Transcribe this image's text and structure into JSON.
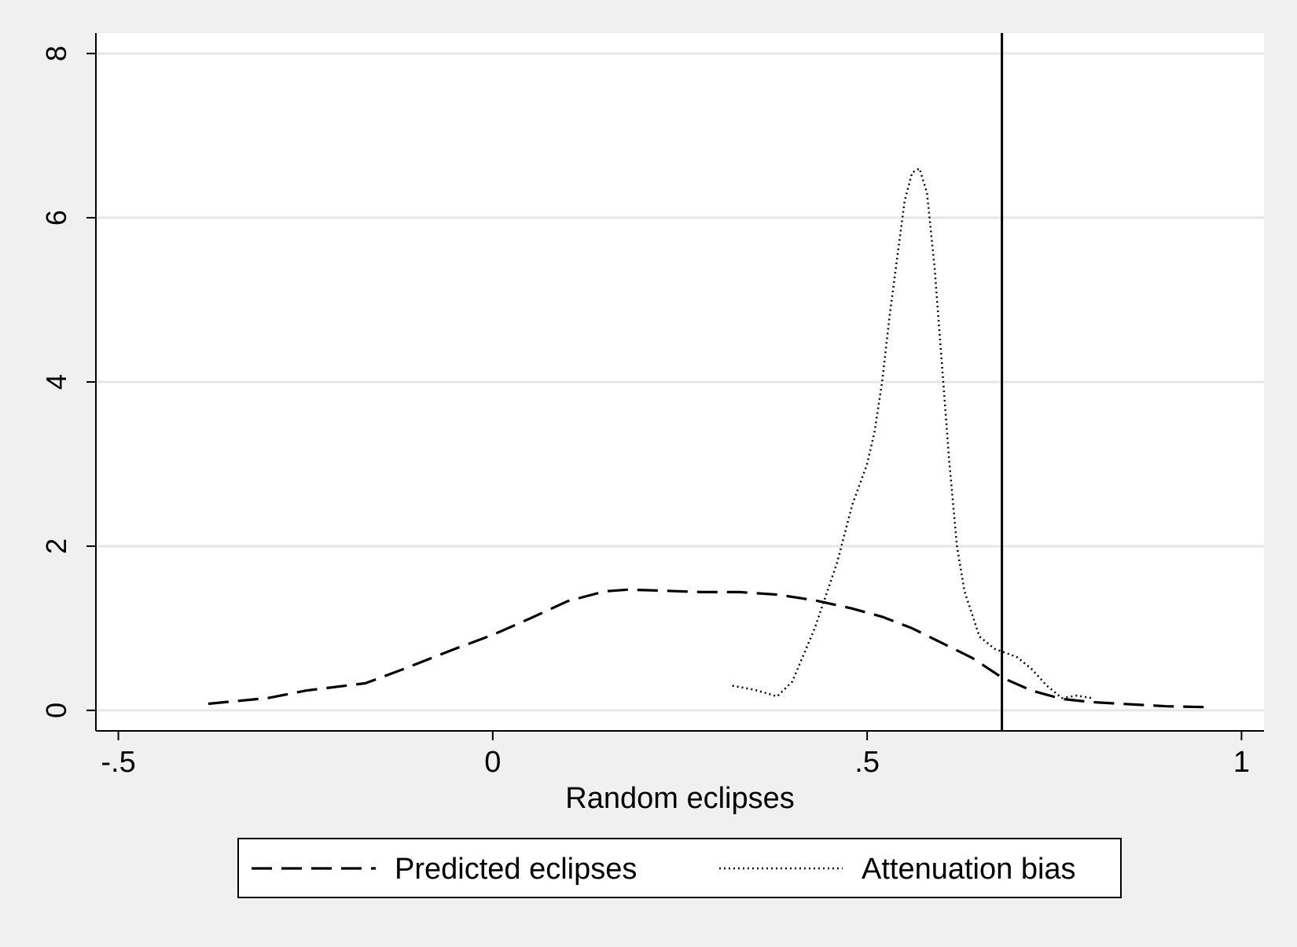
{
  "chart_data": {
    "type": "line",
    "title": "",
    "xlabel": "Random eclipses",
    "ylabel": "",
    "xlim": [
      -0.53,
      1.03
    ],
    "ylim": [
      -0.25,
      8.25
    ],
    "x_ticks": [
      -0.5,
      0,
      0.5,
      1
    ],
    "x_tick_labels": [
      "-.5",
      "0",
      ".5",
      "1"
    ],
    "y_ticks": [
      0,
      2,
      4,
      6,
      8
    ],
    "y_tick_labels": [
      "0",
      "2",
      "4",
      "6",
      "8"
    ],
    "grid": "horizontal",
    "legend_position": "bottom",
    "reference_line": {
      "x": 0.68
    },
    "series": [
      {
        "name": "Predicted eclipses",
        "style": "dashed",
        "color": "#000000",
        "points": [
          [
            -0.38,
            0.08
          ],
          [
            -0.3,
            0.15
          ],
          [
            -0.25,
            0.24
          ],
          [
            -0.17,
            0.33
          ],
          [
            -0.12,
            0.5
          ],
          [
            -0.05,
            0.75
          ],
          [
            0,
            0.92
          ],
          [
            0.05,
            1.12
          ],
          [
            0.1,
            1.33
          ],
          [
            0.15,
            1.45
          ],
          [
            0.18,
            1.47
          ],
          [
            0.22,
            1.46
          ],
          [
            0.28,
            1.44
          ],
          [
            0.33,
            1.44
          ],
          [
            0.38,
            1.41
          ],
          [
            0.43,
            1.34
          ],
          [
            0.48,
            1.24
          ],
          [
            0.52,
            1.14
          ],
          [
            0.56,
            1.0
          ],
          [
            0.6,
            0.82
          ],
          [
            0.64,
            0.64
          ],
          [
            0.68,
            0.4
          ],
          [
            0.72,
            0.24
          ],
          [
            0.76,
            0.14
          ],
          [
            0.8,
            0.1
          ],
          [
            0.86,
            0.07
          ],
          [
            0.9,
            0.05
          ],
          [
            0.95,
            0.04
          ]
        ]
      },
      {
        "name": "Attenuation bias",
        "style": "dotted",
        "color": "#000000",
        "points": [
          [
            0.32,
            0.3
          ],
          [
            0.35,
            0.25
          ],
          [
            0.38,
            0.17
          ],
          [
            0.4,
            0.35
          ],
          [
            0.43,
            1.0
          ],
          [
            0.46,
            1.8
          ],
          [
            0.48,
            2.5
          ],
          [
            0.5,
            3.0
          ],
          [
            0.51,
            3.4
          ],
          [
            0.52,
            4.0
          ],
          [
            0.53,
            4.8
          ],
          [
            0.54,
            5.5
          ],
          [
            0.55,
            6.2
          ],
          [
            0.56,
            6.55
          ],
          [
            0.57,
            6.6
          ],
          [
            0.58,
            6.3
          ],
          [
            0.59,
            5.4
          ],
          [
            0.6,
            4.2
          ],
          [
            0.61,
            3.0
          ],
          [
            0.62,
            2.0
          ],
          [
            0.63,
            1.45
          ],
          [
            0.65,
            0.9
          ],
          [
            0.67,
            0.75
          ],
          [
            0.7,
            0.65
          ],
          [
            0.72,
            0.5
          ],
          [
            0.74,
            0.3
          ],
          [
            0.76,
            0.15
          ],
          [
            0.78,
            0.18
          ],
          [
            0.8,
            0.15
          ]
        ]
      }
    ]
  }
}
